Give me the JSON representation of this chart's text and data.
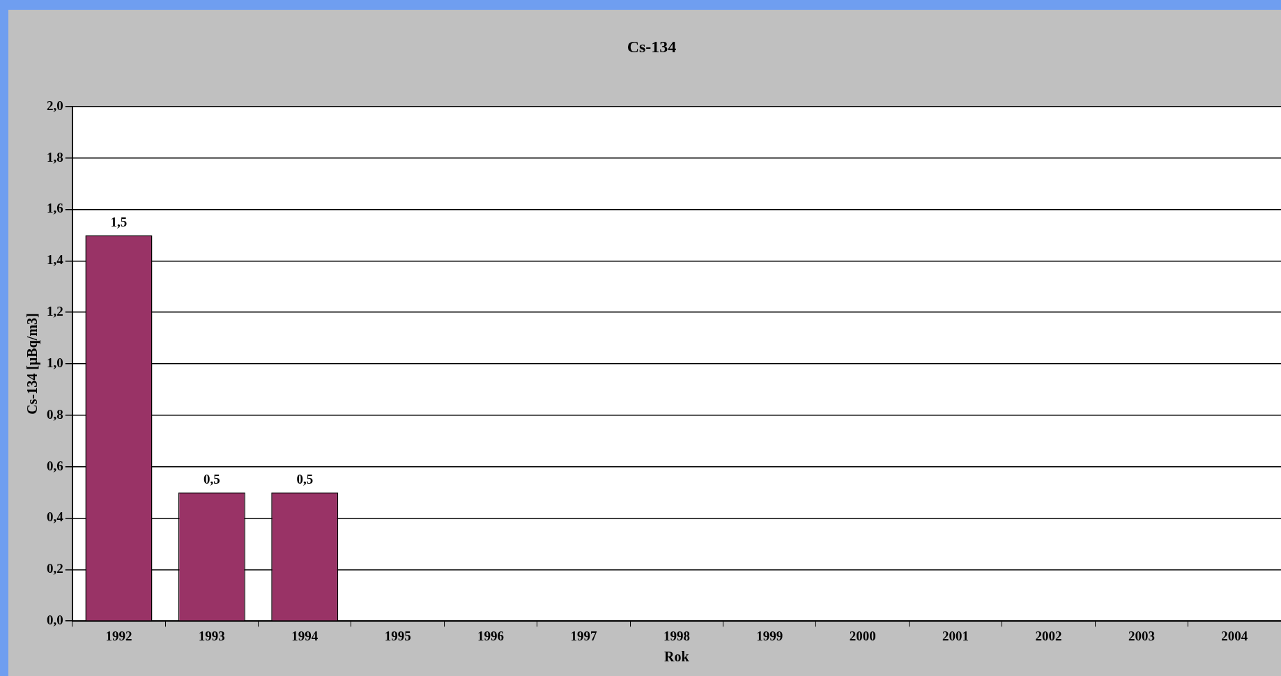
{
  "chart_data": {
    "type": "bar",
    "title": "Cs-134",
    "xlabel": "Rok",
    "ylabel": "Cs-134 [µBq/m3]",
    "categories": [
      "1992",
      "1993",
      "1994",
      "1995",
      "1996",
      "1997",
      "1998",
      "1999",
      "2000",
      "2001",
      "2002",
      "2003",
      "2004"
    ],
    "values": [
      1.5,
      0.5,
      0.5,
      null,
      null,
      null,
      null,
      null,
      null,
      null,
      null,
      null,
      null
    ],
    "value_labels": [
      "1,5",
      "0,5",
      "0,5",
      null,
      null,
      null,
      null,
      null,
      null,
      null,
      null,
      null,
      null
    ],
    "color": "#993366",
    "ylim": [
      0,
      2
    ],
    "yticks": [
      {
        "value": 0,
        "label": "0,0"
      },
      {
        "value": 0.2,
        "label": "0,2"
      },
      {
        "value": 0.4,
        "label": "0,4"
      },
      {
        "value": 0.6,
        "label": "0,6"
      },
      {
        "value": 0.8,
        "label": "0,8"
      },
      {
        "value": 1,
        "label": "1,0"
      },
      {
        "value": 1.2,
        "label": "1,2"
      },
      {
        "value": 1.4,
        "label": "1,4"
      },
      {
        "value": 1.6,
        "label": "1,6"
      },
      {
        "value": 1.8,
        "label": "1,8"
      },
      {
        "value": 2,
        "label": "2,0"
      }
    ],
    "grid": "y"
  }
}
